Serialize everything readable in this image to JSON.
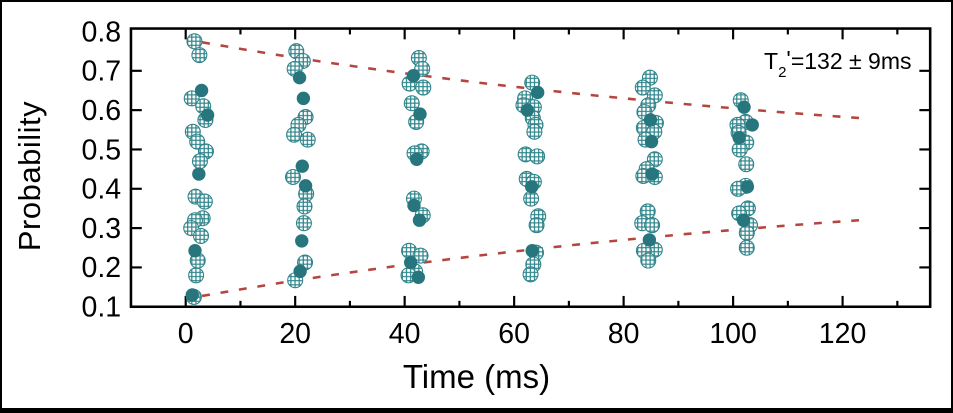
{
  "figure": {
    "background": "#ffffff",
    "frame_color": "#000000"
  },
  "chart_data": {
    "type": "scatter",
    "title": "",
    "xlabel": "Time (ms)",
    "ylabel": "Probability",
    "xlim": [
      -10,
      136
    ],
    "ylim": [
      0.1,
      0.8075
    ],
    "grid": false,
    "x_ticks_major": [
      0,
      20,
      40,
      60,
      80,
      100,
      120
    ],
    "x_tick_labels": [
      "0",
      "20",
      "40",
      "60",
      "80",
      "100",
      "120"
    ],
    "x_ticks_minor": [
      10,
      30,
      50,
      70,
      90,
      110,
      130
    ],
    "y_ticks_major": [
      0.1,
      0.2,
      0.3,
      0.4,
      0.5,
      0.6,
      0.7,
      0.8
    ],
    "y_tick_labels": [
      "0.1",
      "0.2",
      "0.3",
      "0.4",
      "0.5",
      "0.6",
      "0.7",
      "0.8"
    ],
    "annotation": {
      "base": "T",
      "sub": "2",
      "prime": "'",
      "rest": "=132 ± 9ms"
    },
    "colors": {
      "teal_solid": "#27767d",
      "teal_hatch": "#2f858b",
      "envelope_red": "#b5463f",
      "axis": "#000000"
    },
    "envelope_fit": {
      "name": "exponential-decay-envelope",
      "center": 0.45,
      "amplitude": 0.33,
      "T2_ms": 132,
      "t_start": 3,
      "t_end": 124,
      "style": "dashed"
    },
    "clusters": [
      {
        "t": 2,
        "open": [
          [
            -0.4,
            0.775
          ],
          [
            0.5,
            0.74
          ],
          [
            -0.9,
            0.63
          ],
          [
            1.2,
            0.61
          ],
          [
            1.6,
            0.575
          ],
          [
            -0.7,
            0.545
          ],
          [
            0.1,
            0.52
          ],
          [
            1.7,
            0.495
          ],
          [
            0.6,
            0.47
          ],
          [
            -0.2,
            0.38
          ],
          [
            1.5,
            0.3675
          ],
          [
            1.1,
            0.325
          ],
          [
            -0.3,
            0.32
          ],
          [
            -1.0,
            0.3
          ],
          [
            0.8,
            0.28
          ],
          [
            0.2,
            0.2175
          ],
          [
            -0.1,
            0.18
          ],
          [
            -0.5,
            0.125
          ]
        ],
        "filled": [
          [
            0.9,
            0.65
          ],
          [
            2.0,
            0.5875
          ],
          [
            0.4,
            0.4375
          ],
          [
            -0.3,
            0.2425
          ],
          [
            -0.8,
            0.13
          ]
        ]
      },
      {
        "t": 21,
        "open": [
          [
            -0.8,
            0.75
          ],
          [
            0.4,
            0.725
          ],
          [
            -1.1,
            0.705
          ],
          [
            0.9,
            0.5825
          ],
          [
            -0.4,
            0.5625
          ],
          [
            -1.2,
            0.5375
          ],
          [
            1.3,
            0.525
          ],
          [
            -1.4,
            0.43
          ],
          [
            1.0,
            0.3875
          ],
          [
            0.7,
            0.355
          ],
          [
            0.6,
            0.3125
          ],
          [
            0.8,
            0.2125
          ],
          [
            -1.0,
            0.1675
          ]
        ],
        "filled": [
          [
            -0.2,
            0.6825
          ],
          [
            0.5,
            0.63
          ],
          [
            0.3,
            0.4575
          ],
          [
            0.9,
            0.4075
          ],
          [
            0.2,
            0.2675
          ],
          [
            -0.1,
            0.19
          ]
        ]
      },
      {
        "t": 42,
        "open": [
          [
            0.6,
            0.7325
          ],
          [
            1.2,
            0.705
          ],
          [
            -1.1,
            0.6675
          ],
          [
            1.4,
            0.6575
          ],
          [
            -0.7,
            0.6175
          ],
          [
            0.1,
            0.57
          ],
          [
            1.1,
            0.495
          ],
          [
            -0.2,
            0.49
          ],
          [
            -0.3,
            0.375
          ],
          [
            1.3,
            0.3325
          ],
          [
            -1.2,
            0.2425
          ],
          [
            0.9,
            0.23
          ],
          [
            -0.1,
            0.19
          ],
          [
            -1.3,
            0.18
          ]
        ],
        "filled": [
          [
            -0.4,
            0.6875
          ],
          [
            0.8,
            0.59
          ],
          [
            0.2,
            0.475
          ],
          [
            -0.3,
            0.3575
          ],
          [
            0.7,
            0.32
          ],
          [
            -0.9,
            0.2125
          ],
          [
            0.5,
            0.175
          ]
        ]
      },
      {
        "t": 63,
        "open": [
          [
            0.3,
            0.67
          ],
          [
            -1.0,
            0.63
          ],
          [
            -1.3,
            0.6125
          ],
          [
            0.6,
            0.6075
          ],
          [
            0.4,
            0.58
          ],
          [
            0.9,
            0.5625
          ],
          [
            0.7,
            0.545
          ],
          [
            -0.9,
            0.4875
          ],
          [
            1.2,
            0.4825
          ],
          [
            -0.7,
            0.425
          ],
          [
            0.6,
            0.4175
          ],
          [
            0.1,
            0.375
          ],
          [
            1.4,
            0.33
          ],
          [
            1.1,
            0.3075
          ],
          [
            1.0,
            0.2375
          ],
          [
            0.5,
            0.2075
          ],
          [
            0.0,
            0.1825
          ]
        ],
        "filled": [
          [
            1.3,
            0.645
          ],
          [
            -0.6,
            0.6
          ],
          [
            0.2,
            0.405
          ],
          [
            0.3,
            0.2425
          ]
        ]
      },
      {
        "t": 84,
        "open": [
          [
            0.8,
            0.6825
          ],
          [
            -0.5,
            0.6575
          ],
          [
            1.7,
            0.6375
          ],
          [
            0.5,
            0.6125
          ],
          [
            -0.2,
            0.595
          ],
          [
            1.9,
            0.5675
          ],
          [
            -0.3,
            0.555
          ],
          [
            1.6,
            0.545
          ],
          [
            0.0,
            0.525
          ],
          [
            1.7,
            0.475
          ],
          [
            0.2,
            0.45
          ],
          [
            -0.4,
            0.4325
          ],
          [
            1.7,
            0.43
          ],
          [
            0.4,
            0.3425
          ],
          [
            -0.6,
            0.3125
          ],
          [
            1.2,
            0.3075
          ],
          [
            1.7,
            0.245
          ],
          [
            -0.3,
            0.2425
          ],
          [
            0.5,
            0.2175
          ]
        ],
        "filled": [
          [
            0.9,
            0.575
          ],
          [
            1.1,
            0.52
          ],
          [
            1.2,
            0.4375
          ],
          [
            0.7,
            0.27
          ]
        ]
      },
      {
        "t": 102,
        "open": [
          [
            -0.6,
            0.625
          ],
          [
            0.3,
            0.57
          ],
          [
            -1.2,
            0.5625
          ],
          [
            -1.0,
            0.5425
          ],
          [
            0.4,
            0.5175
          ],
          [
            -0.8,
            0.5
          ],
          [
            0.4,
            0.4625
          ],
          [
            0.3,
            0.4075
          ],
          [
            -1.1,
            0.4
          ],
          [
            0.7,
            0.35
          ],
          [
            -0.9,
            0.3375
          ],
          [
            1.1,
            0.3075
          ],
          [
            0.5,
            0.2875
          ],
          [
            0.5,
            0.25
          ]
        ],
        "filled": [
          [
            0.0,
            0.6075
          ],
          [
            1.5,
            0.5625
          ],
          [
            -0.9,
            0.53
          ],
          [
            0.6,
            0.405
          ],
          [
            -0.1,
            0.32
          ]
        ]
      }
    ]
  }
}
